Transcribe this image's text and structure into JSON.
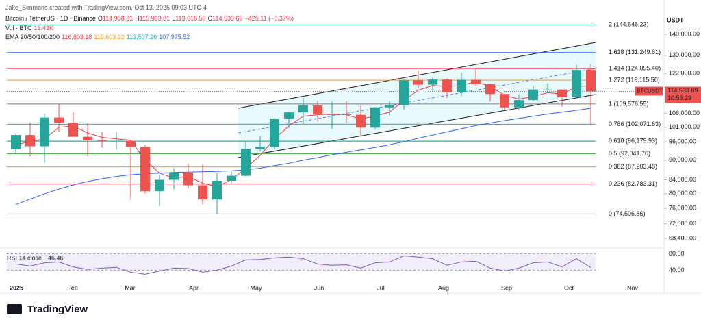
{
  "header": {
    "credit": "Jake_Simmons created with TradingView.com, Oct 13, 2025 09:03 UTC-4",
    "symbol": "Bitcoin / TetherUS · 1D · Binance",
    "ohlc": [
      {
        "key": "O",
        "value": "114,958.81"
      },
      {
        "key": "H",
        "value": "115,963.81"
      },
      {
        "key": "L",
        "value": "113,616.50"
      },
      {
        "key": "C",
        "value": "114,533.69"
      }
    ],
    "change": "−425.11 (−0.37%)",
    "volume": {
      "key": "Vol · BTC",
      "value": "13.42K"
    },
    "ema": {
      "key": "EMA 20/50/100/200",
      "values": [
        {
          "text": "116,803.18",
          "color": "#f23645"
        },
        {
          "text": "115,603.32",
          "color": "#ff9800"
        },
        {
          "text": "113,507.26",
          "color": "#00bcd4"
        },
        {
          "text": "107,975.52",
          "color": "#2962ff"
        }
      ]
    },
    "currency": "USDT"
  },
  "chart_data": {
    "type": "candlestick",
    "log_scale": true,
    "ylim": [
      65660,
      154100
    ],
    "yticks": [
      {
        "value": 140000,
        "label": "140,000.00"
      },
      {
        "value": 130000,
        "label": "130,000.00"
      },
      {
        "value": 122000,
        "label": "122,000.00"
      },
      {
        "value": 106000,
        "label": "106,000.00"
      },
      {
        "value": 101000,
        "label": "101,000.00"
      },
      {
        "value": 96000,
        "label": "96,000.00"
      },
      {
        "value": 90000,
        "label": "90,000.00"
      },
      {
        "value": 84000,
        "label": "84,000.00"
      },
      {
        "value": 80000,
        "label": "80,000.00"
      },
      {
        "value": 76000,
        "label": "76,000.00"
      },
      {
        "value": 72000,
        "label": "72,000.00"
      },
      {
        "value": 68400,
        "label": "68,400.00"
      }
    ],
    "x_labels": [
      "2025",
      "Feb",
      "Mar",
      "Apr",
      "May",
      "Jun",
      "Jul",
      "Aug",
      "Sep",
      "Oct",
      "Nov"
    ],
    "up_color": "#26a69a",
    "down_color": "#ef5350",
    "series": [
      {
        "open": [
          93500,
          98300,
          94500,
          104500,
          102600,
          97700,
          96500,
          96100,
          96300,
          94300,
          80700,
          84000,
          86100,
          82400,
          78400,
          83700,
          85200,
          93700,
          94300,
          104100,
          106400,
          109000,
          105700,
          105700,
          105500,
          100900,
          108300,
          109200,
          119100,
          117300,
          119400,
          114200,
          119300,
          117500,
          113500,
          108300,
          111100,
          115300,
          115300,
          112200,
          123500
        ],
        "high": [
          98900,
          102700,
          106000,
          109500,
          106500,
          102500,
          99500,
          99400,
          96500,
          95000,
          85300,
          87500,
          88800,
          88500,
          86000,
          86500,
          95800,
          97900,
          104300,
          106600,
          111900,
          110700,
          110500,
          110600,
          108900,
          108500,
          110500,
          119500,
          123200,
          120250,
          119800,
          122300,
          124500,
          117600,
          113600,
          113400,
          116700,
          117900,
          115400,
          125700,
          126200
        ],
        "low": [
          91800,
          91200,
          89300,
          99500,
          97800,
          91200,
          94100,
          93400,
          78300,
          80000,
          76600,
          81200,
          81600,
          77000,
          74500,
          83000,
          85000,
          92800,
          93400,
          100700,
          102000,
          103100,
          100400,
          102600,
          98200,
          100300,
          105300,
          107500,
          115700,
          114700,
          112000,
          112600,
          116800,
          110600,
          107300,
          107300,
          110600,
          114800,
          108600,
          111600,
          102000
        ],
        "close": [
          98300,
          94500,
          104500,
          102600,
          97700,
          96500,
          96100,
          96300,
          94300,
          80700,
          84000,
          86100,
          82400,
          78400,
          83700,
          85200,
          93700,
          94300,
          104100,
          106400,
          109000,
          105700,
          105700,
          105500,
          100900,
          108300,
          109200,
          119100,
          117300,
          119400,
          114200,
          119300,
          117500,
          113500,
          108300,
          111100,
          115300,
          115300,
          112200,
          123500,
          114533.69
        ]
      }
    ],
    "ema_lines": [
      {
        "color": "#f23645",
        "values": [
          95000,
          96000,
          97000,
          101000,
          101500,
          99000,
          97500,
          97000,
          96500,
          90000,
          86000,
          84500,
          85000,
          83000,
          82000,
          84000,
          87500,
          91500,
          97000,
          101500,
          105000,
          105500,
          105800,
          105500,
          104000,
          105000,
          106500,
          111000,
          115000,
          117000,
          116500,
          117000,
          118500,
          116500,
          113000,
          111500,
          112500,
          114000,
          113500,
          116500,
          116803.18
        ]
      },
      {
        "color": "#2962ff",
        "values": [
          77000,
          78500,
          80000,
          81300,
          82500,
          83500,
          84300,
          85000,
          85500,
          85800,
          86000,
          86200,
          86300,
          86400,
          86500,
          86700,
          87000,
          87500,
          88300,
          89000,
          90000,
          90800,
          91700,
          92500,
          93300,
          94100,
          95000,
          96000,
          97200,
          98300,
          99400,
          100500,
          101600,
          102500,
          103400,
          104200,
          105000,
          105800,
          106500,
          107200,
          107975.52
        ]
      }
    ],
    "fib_levels": [
      {
        "price": 144646.23,
        "label": "2 (144,646.23)",
        "color": "#089981"
      },
      {
        "price": 131249.61,
        "label": "1.618 (131,249.61)",
        "color": "#2962ff"
      },
      {
        "price": 124095.4,
        "label": "1.414 (124,095.40)",
        "color": "#f23645"
      },
      {
        "price": 119115.5,
        "label": "1.272 (119,115.50)",
        "color": "#ff9800"
      },
      {
        "price": 109576.55,
        "label": "1 (109,576.55)",
        "color": "#787b86"
      },
      {
        "price": 102071.63,
        "label": "0.786 (102,071.63)",
        "color": "#00bcd4"
      },
      {
        "price": 96179.93,
        "label": "0.618 (96,179.93)",
        "color": "#089981"
      },
      {
        "price": 92041.7,
        "label": "0.5 (92,041.70)",
        "color": "#4caf50"
      },
      {
        "price": 87903.48,
        "label": "0.382 (87,903.48)",
        "color": "#ff9800"
      },
      {
        "price": 82783.31,
        "label": "0.236 (82,783.31)",
        "color": "#f23645"
      },
      {
        "price": 74506.86,
        "label": "0 (74,506.86)",
        "color": "#787b86"
      }
    ],
    "price_tag": {
      "symbol": "BTCUSDT",
      "value": 114533.69,
      "label": "114,533.69",
      "countdown": "10:56:29"
    },
    "rsi": {
      "label": "RSI 14 close",
      "value_label": "46.46",
      "color": "#7e57c2",
      "ylim": [
        14,
        94
      ],
      "yticks": [
        {
          "value": 80,
          "label": "80.00"
        },
        {
          "value": 40,
          "label": "40.00"
        }
      ],
      "values": [
        55,
        50,
        58,
        60,
        48,
        42,
        45,
        47,
        35,
        30,
        38,
        45,
        44,
        35,
        40,
        50,
        65,
        66,
        70,
        72,
        68,
        55,
        52,
        53,
        45,
        58,
        60,
        75,
        72,
        68,
        52,
        60,
        62,
        45,
        38,
        45,
        58,
        60,
        48,
        68,
        46.46
      ]
    }
  },
  "brand": "TradingView"
}
